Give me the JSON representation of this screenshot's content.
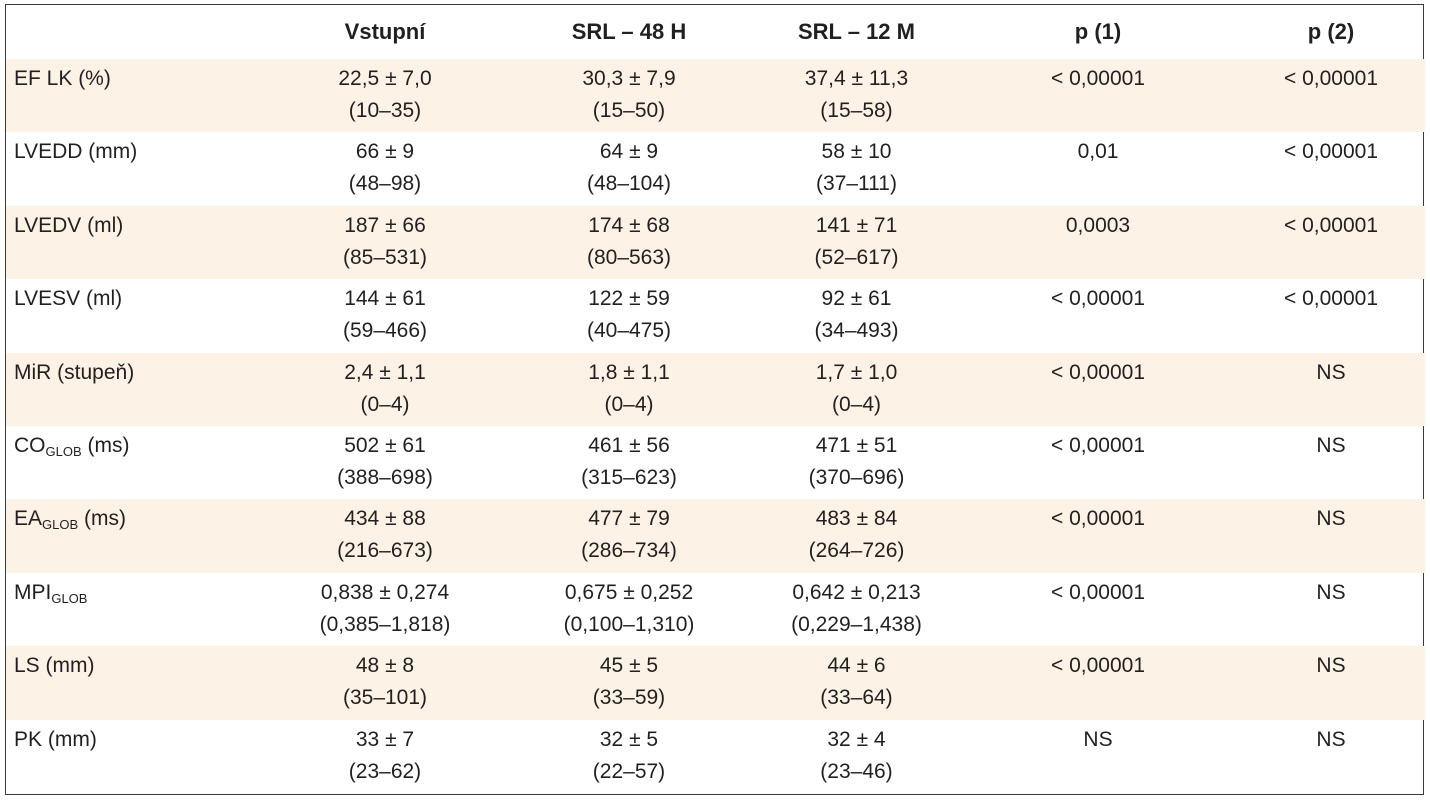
{
  "headers": [
    "",
    "Vstupní",
    "SRL – 48 H",
    "SRL – 12 M",
    "p (1)",
    "p (2)"
  ],
  "rows": [
    {
      "label": "EF LK (%)",
      "sub": "",
      "unit": "",
      "v1": [
        "22,5 ± 7,0",
        "(10–35)"
      ],
      "v2": [
        "30,3 ± 7,9",
        "(15–50)"
      ],
      "v3": [
        "37,4 ± 11,3",
        "(15–58)"
      ],
      "p1": "< 0,00001",
      "p2": "< 0,00001"
    },
    {
      "label": "LVEDD (mm)",
      "sub": "",
      "unit": "",
      "v1": [
        "66 ± 9",
        "(48–98)"
      ],
      "v2": [
        "64 ± 9",
        "(48–104)"
      ],
      "v3": [
        "58 ± 10",
        "(37–111)"
      ],
      "p1": "0,01",
      "p2": "< 0,00001"
    },
    {
      "label": "LVEDV (ml)",
      "sub": "",
      "unit": "",
      "v1": [
        "187 ± 66",
        "(85–531)"
      ],
      "v2": [
        "174 ± 68",
        "(80–563)"
      ],
      "v3": [
        "141 ± 71",
        "(52–617)"
      ],
      "p1": "0,0003",
      "p2": "< 0,00001"
    },
    {
      "label": "LVESV (ml)",
      "sub": "",
      "unit": "",
      "v1": [
        "144 ± 61",
        "(59–466)"
      ],
      "v2": [
        "122 ± 59",
        "(40–475)"
      ],
      "v3": [
        "92 ± 61",
        "(34–493)"
      ],
      "p1": "< 0,00001",
      "p2": "< 0,00001"
    },
    {
      "label": "MiR (stupeň)",
      "sub": "",
      "unit": "",
      "v1": [
        "2,4 ± 1,1",
        "(0–4)"
      ],
      "v2": [
        "1,8 ± 1,1",
        "(0–4)"
      ],
      "v3": [
        "1,7 ± 1,0",
        "(0–4)"
      ],
      "p1": "< 0,00001",
      "p2": "NS"
    },
    {
      "label": "CO",
      "sub": "GLOB",
      "unit": " (ms)",
      "v1": [
        "502 ± 61",
        "(388–698)"
      ],
      "v2": [
        "461 ± 56",
        "(315–623)"
      ],
      "v3": [
        "471 ± 51",
        "(370–696)"
      ],
      "p1": "< 0,00001",
      "p2": "NS"
    },
    {
      "label": "EA",
      "sub": "GLOB",
      "unit": " (ms)",
      "v1": [
        "434 ± 88",
        "(216–673)"
      ],
      "v2": [
        "477 ± 79",
        "(286–734)"
      ],
      "v3": [
        "483 ± 84",
        "(264–726)"
      ],
      "p1": "< 0,00001",
      "p2": "NS"
    },
    {
      "label": "MPI",
      "sub": "GLOB",
      "unit": "",
      "v1": [
        "0,838 ± 0,274",
        "(0,385–1,818)"
      ],
      "v2": [
        "0,675 ± 0,252",
        "(0,100–1,310)"
      ],
      "v3": [
        "0,642 ± 0,213",
        "(0,229–1,438)"
      ],
      "p1": "< 0,00001",
      "p2": "NS"
    },
    {
      "label": "LS (mm)",
      "sub": "",
      "unit": "",
      "v1": [
        "48 ± 8",
        "(35–101)"
      ],
      "v2": [
        "45 ± 5",
        "(33–59)"
      ],
      "v3": [
        "44 ± 6",
        "(33–64)"
      ],
      "p1": "< 0,00001",
      "p2": "NS"
    },
    {
      "label": "PK (mm)",
      "sub": "",
      "unit": "",
      "v1": [
        "33 ± 7",
        "(23–62)"
      ],
      "v2": [
        "32 ± 5",
        "(22–57)"
      ],
      "v3": [
        "32 ± 4",
        "(23–46)"
      ],
      "p1": "NS",
      "p2": "NS"
    }
  ]
}
